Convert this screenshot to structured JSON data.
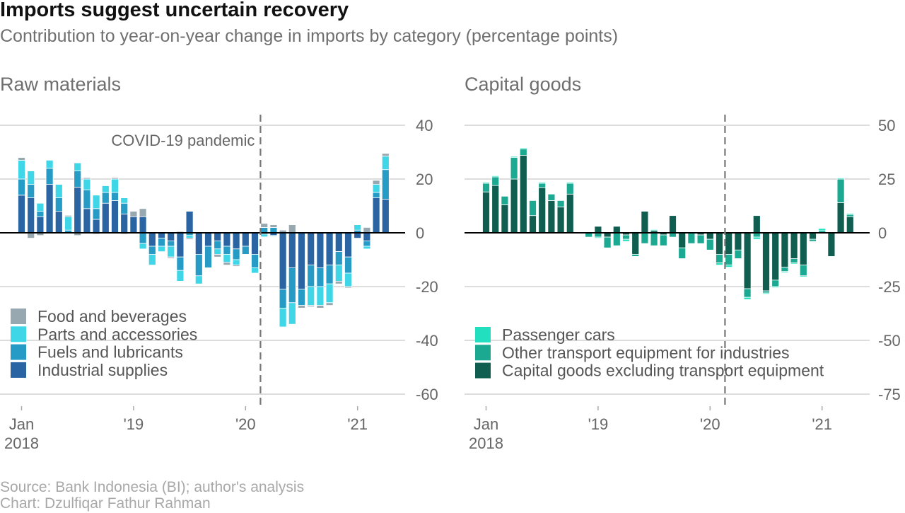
{
  "title": "Imports suggest uncertain recovery",
  "subtitle": "Contribution to year-on-year change in imports by category (percentage points)",
  "source": "Source: Bank Indonesia (BI); author's analysis",
  "credit": "Chart: Dzulfiqar Fathur Rahman",
  "annotation": "COVID-19 pandemic",
  "colors": {
    "food": "#98a8b1",
    "parts": "#3fd6e8",
    "fuels": "#259bc6",
    "industrial": "#2a64a3",
    "cars": "#22dfc0",
    "other_transport": "#1ba991",
    "capital_ex": "#0f5e50",
    "grid": "#dddddd",
    "axis_text": "#666666",
    "zero": "#000000"
  },
  "chart_data": [
    {
      "type": "bar",
      "stacked": true,
      "panel_title": "Raw materials",
      "months": [
        "2018-01",
        "2018-02",
        "2018-03",
        "2018-04",
        "2018-05",
        "2018-06",
        "2018-07",
        "2018-08",
        "2018-09",
        "2018-10",
        "2018-11",
        "2018-12",
        "2019-01",
        "2019-02",
        "2019-03",
        "2019-04",
        "2019-05",
        "2019-06",
        "2019-07",
        "2019-08",
        "2019-09",
        "2019-10",
        "2019-11",
        "2019-12",
        "2020-01",
        "2020-02",
        "2020-03",
        "2020-04",
        "2020-05",
        "2020-06",
        "2020-07",
        "2020-08",
        "2020-09",
        "2020-10",
        "2020-11",
        "2020-12",
        "2021-01",
        "2021-02",
        "2021-03",
        "2021-04"
      ],
      "x_tick_labels": [
        {
          "month": "2018-01",
          "line1": "Jan",
          "line2": "2018"
        },
        {
          "month": "2019-01",
          "line1": "'19",
          "line2": ""
        },
        {
          "month": "2020-01",
          "line1": "'20",
          "line2": ""
        },
        {
          "month": "2021-01",
          "line1": "'21",
          "line2": ""
        }
      ],
      "ylim": [
        -60,
        45
      ],
      "y_ticks": [
        40,
        20,
        0,
        -20,
        -40,
        -60
      ],
      "y_tick_labels": [
        "40",
        "20",
        "0",
        "-20",
        "-40",
        "-60"
      ],
      "covid_line_month": "2020-03",
      "series": [
        {
          "name": "Food and beverages",
          "color_key": "food",
          "values": [
            1,
            -2,
            -1,
            0,
            0,
            0.5,
            -1,
            0.5,
            -0.5,
            0,
            0.5,
            -0.5,
            2,
            3,
            0,
            0,
            -0.5,
            0.5,
            -0.5,
            0,
            0,
            -1,
            -1,
            -0.5,
            0,
            0,
            1.5,
            1,
            1,
            3,
            -1,
            -0.5,
            -1,
            -1,
            -1,
            -0.5,
            0,
            2,
            1.5,
            1
          ]
        },
        {
          "name": "Parts and accessories",
          "color_key": "parts",
          "values": [
            7,
            5,
            3,
            3,
            5,
            5,
            3,
            4,
            5,
            2.5,
            5,
            2,
            0,
            -2,
            -4,
            -2,
            -4,
            -4,
            -1,
            -3,
            0,
            -2,
            -3,
            -2,
            0,
            -2,
            -1,
            -0.3,
            -7,
            -8,
            0,
            -7,
            -7,
            -7,
            -6,
            -5,
            2,
            -1,
            3,
            5
          ]
        },
        {
          "name": "Fuels and lubricants",
          "color_key": "fuels",
          "values": [
            6,
            5,
            2,
            6,
            5,
            1,
            6,
            7,
            4,
            4,
            3,
            4,
            0,
            -4,
            -3,
            -3,
            -2,
            -5,
            -1,
            -8,
            -8,
            -3,
            -3,
            -4,
            -3,
            -5,
            2,
            2,
            -7,
            -13,
            -6,
            -8,
            -7,
            -7,
            -5,
            -6,
            1,
            -2,
            2,
            11
          ]
        },
        {
          "name": "Industrial supplies",
          "color_key": "industrial",
          "values": [
            14,
            13,
            6,
            18,
            8,
            0,
            17,
            9,
            5,
            11,
            12,
            7,
            6,
            6,
            -5,
            -2,
            -3,
            -9,
            8,
            -8,
            -5,
            -3,
            -5,
            -6,
            -5,
            -8,
            -0.5,
            -1,
            -21,
            -13,
            -21,
            -12,
            -13,
            -12,
            -7,
            -9,
            -2,
            -3,
            13,
            12.5
          ]
        }
      ]
    },
    {
      "type": "bar",
      "stacked": true,
      "panel_title": "Capital goods",
      "months": [
        "2018-01",
        "2018-02",
        "2018-03",
        "2018-04",
        "2018-05",
        "2018-06",
        "2018-07",
        "2018-08",
        "2018-09",
        "2018-10",
        "2018-11",
        "2018-12",
        "2019-01",
        "2019-02",
        "2019-03",
        "2019-04",
        "2019-05",
        "2019-06",
        "2019-07",
        "2019-08",
        "2019-09",
        "2019-10",
        "2019-11",
        "2019-12",
        "2020-01",
        "2020-02",
        "2020-03",
        "2020-04",
        "2020-05",
        "2020-06",
        "2020-07",
        "2020-08",
        "2020-09",
        "2020-10",
        "2020-11",
        "2020-12",
        "2021-01",
        "2021-02",
        "2021-03",
        "2021-04"
      ],
      "x_tick_labels": [
        {
          "month": "2018-01",
          "line1": "Jan",
          "line2": "2018"
        },
        {
          "month": "2019-01",
          "line1": "'19",
          "line2": ""
        },
        {
          "month": "2020-01",
          "line1": "'20",
          "line2": ""
        },
        {
          "month": "2021-01",
          "line1": "'21",
          "line2": ""
        }
      ],
      "ylim": [
        -75,
        56
      ],
      "y_ticks": [
        50,
        25,
        0,
        -25,
        -50,
        -75
      ],
      "y_tick_labels": [
        "50",
        "25",
        "0",
        "-25",
        "-50",
        "-75"
      ],
      "covid_line_month": "2020-03",
      "series": [
        {
          "name": "Passenger cars",
          "color_key": "cars",
          "values": [
            0.5,
            0.5,
            0,
            0.5,
            0.5,
            0,
            0.5,
            0,
            0,
            0.5,
            0,
            0,
            -0.5,
            0,
            0,
            -1,
            0.5,
            0,
            0.5,
            0,
            0,
            0,
            0,
            0,
            0,
            -1,
            -1,
            0,
            -1,
            -1,
            -0.5,
            -0.5,
            -0.5,
            -0.5,
            -0.5,
            0,
            1,
            0,
            0.5,
            0.5
          ]
        },
        {
          "name": "Other transport equipment for industries",
          "color_key": "other_transport",
          "values": [
            4,
            4,
            4,
            10,
            3,
            7,
            2,
            3,
            3,
            5,
            0,
            -2,
            -2,
            -5,
            -6,
            -2,
            -1,
            -5,
            -6,
            -5,
            -2,
            -5,
            -5,
            -4,
            -5,
            -4,
            -5,
            -4,
            -4,
            -2,
            -1,
            -3,
            -2,
            -2,
            -5,
            -1,
            1,
            0,
            11,
            1
          ]
        },
        {
          "name": "Capital goods excluding transport equipment",
          "color_key": "capital_ex",
          "values": [
            19,
            22,
            13,
            25,
            36,
            8,
            21,
            15,
            12,
            18,
            0,
            0,
            3,
            -2,
            3,
            -1,
            -10,
            10,
            1,
            -1,
            8,
            -7,
            0,
            -1,
            -3,
            -10,
            -10,
            -8,
            -26,
            8,
            -27,
            -22,
            -16,
            -12,
            -15,
            -3,
            0,
            -11,
            14,
            7.5
          ]
        }
      ]
    }
  ]
}
